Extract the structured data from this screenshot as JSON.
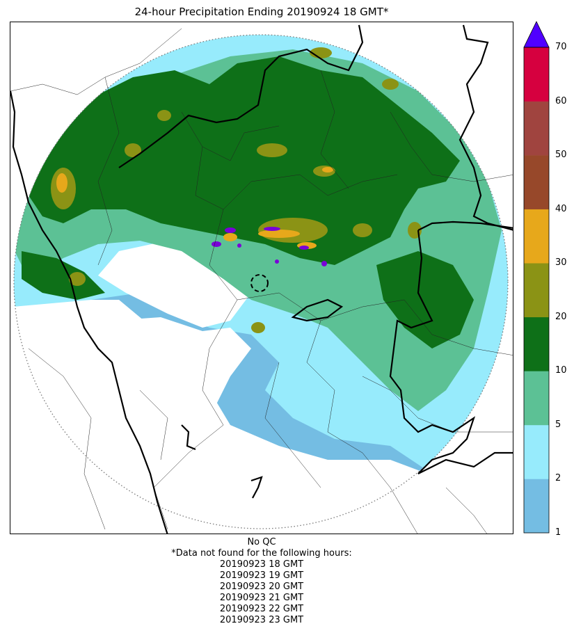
{
  "title": "24-hour Precipitation Ending 20190924 18 GMT*",
  "colorbar": {
    "ticks": [
      "1",
      "2",
      "5",
      "10",
      "20",
      "30",
      "40",
      "50",
      "60",
      "70"
    ],
    "colors": [
      "#74bde3",
      "#97ebfc",
      "#5cc195",
      "#0e7018",
      "#8b9315",
      "#e7a81b",
      "#97482a",
      "#a0443f",
      "#d6003f"
    ],
    "extend_color": "#5000ff"
  },
  "precip_colors": {
    "light_blue": "#74bde3",
    "cyan": "#97ebfc",
    "mint": "#5cc195",
    "green": "#0e7018",
    "olive": "#8b9315",
    "orange": "#e7a81b",
    "purple": "#7a00d8"
  },
  "footer": {
    "qc": "No QC",
    "note": "*Data not found for the following hours:",
    "hours": [
      "20190923 18 GMT",
      "20190923 19 GMT",
      "20190923 20 GMT",
      "20190923 21 GMT",
      "20190923 22 GMT",
      "20190923 23 GMT"
    ]
  }
}
